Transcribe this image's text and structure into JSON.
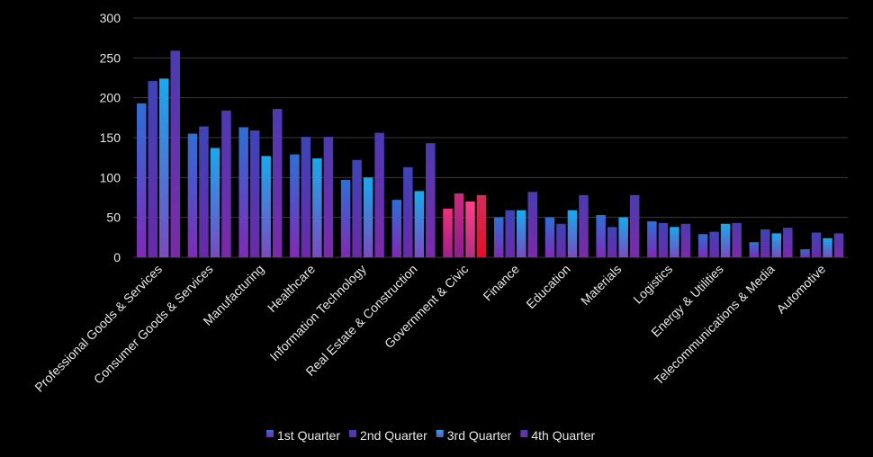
{
  "chart_data": {
    "type": "bar",
    "title": "",
    "xlabel": "",
    "ylabel": "",
    "ylim": [
      0,
      300
    ],
    "yticks": [
      0,
      50,
      100,
      150,
      200,
      250,
      300
    ],
    "grid": true,
    "legend_position": "bottom",
    "categories": [
      "Professional Goods & Services",
      "Consumer Goods & Services",
      "Manufacturing",
      "Healthcare",
      "Information Technology",
      "Real Estate & Construction",
      "Government & Civic",
      "Finance",
      "Education",
      "Materials",
      "Logistics",
      "Energy & Utilities",
      "Telecommunications & Media",
      "Automotive"
    ],
    "series": [
      {
        "name": "1st Quarter",
        "values": [
          193,
          155,
          163,
          129,
          97,
          72,
          61,
          50,
          50,
          53,
          45,
          29,
          19,
          10
        ]
      },
      {
        "name": "2nd Quarter",
        "values": [
          221,
          164,
          159,
          151,
          122,
          113,
          80,
          59,
          42,
          38,
          43,
          32,
          35,
          31
        ]
      },
      {
        "name": "3rd Quarter",
        "values": [
          224,
          137,
          127,
          124,
          100,
          83,
          70,
          59,
          59,
          50,
          38,
          42,
          30,
          24
        ]
      },
      {
        "name": "4th Quarter",
        "values": [
          259,
          184,
          186,
          151,
          156,
          143,
          78,
          82,
          78,
          78,
          42,
          43,
          37,
          30
        ]
      }
    ],
    "highlight_category": "Government & Civic"
  },
  "colors": {
    "background": "#000000",
    "grid": "#3a3a3a",
    "axis_text": "#e6e6e6",
    "series_top": [
      "#2f6fd6",
      "#3d44b8",
      "#19a9ee",
      "#4b3bb0"
    ],
    "series_bottom": [
      "#7f2ab5",
      "#6a2aa8",
      "#7a4bc0",
      "#7b2aa8"
    ],
    "highlight_top": [
      "#f0307a",
      "#cc2a7a",
      "#ff3f88",
      "#d22d5a"
    ],
    "highlight_bottom": [
      "#a0208a",
      "#8a1f8f",
      "#b23080",
      "#e0102a"
    ]
  }
}
